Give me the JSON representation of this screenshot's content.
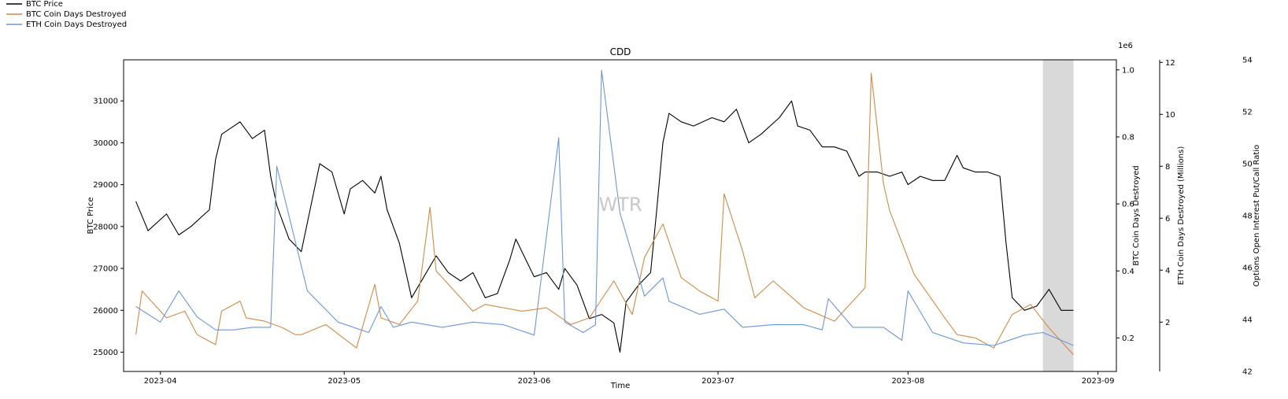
{
  "legend": {
    "items": [
      {
        "label": "BTC Price",
        "color": "#000000"
      },
      {
        "label": "BTC Coin Days Destroyed",
        "color": "#d08a47"
      },
      {
        "label": "ETH Coin Days Destroyed",
        "color": "#6b96d8"
      }
    ]
  },
  "watermark": "WTR",
  "chart_data": {
    "type": "line",
    "title": "CDD",
    "xlabel": "Time",
    "x_ticks": [
      "2023-04",
      "2023-05",
      "2023-06",
      "2023-07",
      "2023-08",
      "2023-09"
    ],
    "x_range": [
      "2023-03-26",
      "2023-09-04"
    ],
    "axes": {
      "btc_price": {
        "label": "BTC Price",
        "ylim": [
          24540,
          31980
        ],
        "ticks": [
          25000,
          26000,
          27000,
          28000,
          29000,
          30000,
          31000
        ]
      },
      "btc_cdd": {
        "label": "BTC Coin Days Destroyed",
        "scale_label": "1e6",
        "ylim": [
          0.1,
          1.03
        ],
        "ticks": [
          "0.2",
          "0.4",
          "0.6",
          "0.8",
          "1.0"
        ]
      },
      "eth_cdd": {
        "label": "ETH Coin Days Destroyed (Millions)",
        "ylim": [
          0.1,
          12.1
        ],
        "ticks": [
          "2",
          "4",
          "6",
          "8",
          "10",
          "12"
        ]
      },
      "put_call": {
        "label": "Options Open Interest Put/Call Ratio",
        "ylim": [
          42,
          54
        ],
        "ticks": [
          "42",
          "44",
          "46",
          "48",
          "50",
          "52",
          "54"
        ]
      }
    },
    "shaded_region": [
      "2023-08-23",
      "2023-08-28"
    ],
    "series": [
      {
        "name": "BTC Price",
        "color": "#000000",
        "axis": "btc_price",
        "x": [
          "2023-03-28",
          "2023-03-30",
          "2023-04-02",
          "2023-04-04",
          "2023-04-06",
          "2023-04-09",
          "2023-04-10",
          "2023-04-11",
          "2023-04-14",
          "2023-04-16",
          "2023-04-18",
          "2023-04-19",
          "2023-04-20",
          "2023-04-22",
          "2023-04-24",
          "2023-04-26",
          "2023-04-27",
          "2023-04-29",
          "2023-05-01",
          "2023-05-02",
          "2023-05-04",
          "2023-05-06",
          "2023-05-07",
          "2023-05-08",
          "2023-05-10",
          "2023-05-12",
          "2023-05-14",
          "2023-05-16",
          "2023-05-18",
          "2023-05-20",
          "2023-05-22",
          "2023-05-24",
          "2023-05-26",
          "2023-05-28",
          "2023-05-29",
          "2023-05-31",
          "2023-06-01",
          "2023-06-03",
          "2023-06-05",
          "2023-06-06",
          "2023-06-08",
          "2023-06-10",
          "2023-06-12",
          "2023-06-14",
          "2023-06-15",
          "2023-06-16",
          "2023-06-18",
          "2023-06-20",
          "2023-06-21",
          "2023-06-22",
          "2023-06-23",
          "2023-06-25",
          "2023-06-27",
          "2023-06-30",
          "2023-07-02",
          "2023-07-04",
          "2023-07-06",
          "2023-07-08",
          "2023-07-11",
          "2023-07-13",
          "2023-07-14",
          "2023-07-16",
          "2023-07-18",
          "2023-07-20",
          "2023-07-22",
          "2023-07-24",
          "2023-07-25",
          "2023-07-27",
          "2023-07-29",
          "2023-07-31",
          "2023-08-01",
          "2023-08-03",
          "2023-08-05",
          "2023-08-07",
          "2023-08-09",
          "2023-08-10",
          "2023-08-12",
          "2023-08-14",
          "2023-08-16",
          "2023-08-17",
          "2023-08-18",
          "2023-08-20",
          "2023-08-22",
          "2023-08-24",
          "2023-08-26",
          "2023-08-28"
        ],
        "values": [
          28600,
          27900,
          28300,
          27800,
          28000,
          28400,
          29600,
          30200,
          30500,
          30100,
          30300,
          29200,
          28500,
          27700,
          27400,
          28800,
          29500,
          29300,
          28300,
          28900,
          29100,
          28800,
          29200,
          28400,
          27600,
          26300,
          26800,
          27300,
          26900,
          26700,
          26900,
          26300,
          26400,
          27200,
          27700,
          27100,
          26800,
          26900,
          26500,
          27000,
          26600,
          25800,
          25900,
          25700,
          25000,
          26200,
          26600,
          26900,
          28400,
          30000,
          30700,
          30500,
          30400,
          30600,
          30500,
          30800,
          30000,
          30200,
          30600,
          31000,
          30400,
          30300,
          29900,
          29900,
          29800,
          29200,
          29300,
          29300,
          29200,
          29300,
          29000,
          29200,
          29100,
          29100,
          29700,
          29400,
          29300,
          29300,
          29200,
          27600,
          26300,
          26000,
          26100,
          26500,
          26000,
          26000
        ]
      },
      {
        "name": "BTC Coin Days Destroyed",
        "color": "#d08a47",
        "axis": "btc_cdd",
        "x": [
          "2023-03-28",
          "2023-03-29",
          "2023-04-02",
          "2023-04-05",
          "2023-04-07",
          "2023-04-10",
          "2023-04-11",
          "2023-04-14",
          "2023-04-15",
          "2023-04-18",
          "2023-04-21",
          "2023-04-23",
          "2023-04-24",
          "2023-04-28",
          "2023-05-03",
          "2023-05-06",
          "2023-05-07",
          "2023-05-10",
          "2023-05-13",
          "2023-05-15",
          "2023-05-16",
          "2023-05-19",
          "2023-05-22",
          "2023-05-24",
          "2023-05-30",
          "2023-06-03",
          "2023-06-07",
          "2023-06-10",
          "2023-06-14",
          "2023-06-17",
          "2023-06-19",
          "2023-06-22",
          "2023-06-25",
          "2023-06-28",
          "2023-07-01",
          "2023-07-02",
          "2023-07-05",
          "2023-07-07",
          "2023-07-10",
          "2023-07-15",
          "2023-07-20",
          "2023-07-25",
          "2023-07-26",
          "2023-07-28",
          "2023-07-29",
          "2023-08-02",
          "2023-08-07",
          "2023-08-09",
          "2023-08-12",
          "2023-08-15",
          "2023-08-18",
          "2023-08-21",
          "2023-08-24",
          "2023-08-27",
          "2023-08-28"
        ],
        "values": [
          0.21,
          0.34,
          0.26,
          0.28,
          0.21,
          0.18,
          0.28,
          0.31,
          0.26,
          0.25,
          0.23,
          0.21,
          0.21,
          0.24,
          0.17,
          0.36,
          0.26,
          0.24,
          0.31,
          0.59,
          0.4,
          0.34,
          0.28,
          0.3,
          0.28,
          0.29,
          0.24,
          0.26,
          0.37,
          0.27,
          0.44,
          0.54,
          0.38,
          0.34,
          0.31,
          0.63,
          0.46,
          0.32,
          0.37,
          0.29,
          0.25,
          0.35,
          0.99,
          0.66,
          0.58,
          0.39,
          0.26,
          0.21,
          0.2,
          0.17,
          0.27,
          0.3,
          0.23,
          0.17,
          0.15
        ]
      },
      {
        "name": "ETH Coin Days Destroyed",
        "color": "#6b96d8",
        "axis": "eth_cdd",
        "x": [
          "2023-03-28",
          "2023-04-01",
          "2023-04-04",
          "2023-04-07",
          "2023-04-10",
          "2023-04-13",
          "2023-04-16",
          "2023-04-19",
          "2023-04-20",
          "2023-04-25",
          "2023-04-30",
          "2023-05-05",
          "2023-05-07",
          "2023-05-09",
          "2023-05-12",
          "2023-05-17",
          "2023-05-22",
          "2023-05-27",
          "2023-06-01",
          "2023-06-05",
          "2023-06-06",
          "2023-06-09",
          "2023-06-11",
          "2023-06-12",
          "2023-06-15",
          "2023-06-19",
          "2023-06-22",
          "2023-06-23",
          "2023-06-28",
          "2023-07-02",
          "2023-07-05",
          "2023-07-10",
          "2023-07-15",
          "2023-07-18",
          "2023-07-19",
          "2023-07-23",
          "2023-07-28",
          "2023-07-31",
          "2023-08-01",
          "2023-08-05",
          "2023-08-10",
          "2023-08-15",
          "2023-08-20",
          "2023-08-23",
          "2023-08-28"
        ],
        "values": [
          2.6,
          2.0,
          3.2,
          2.2,
          1.7,
          1.7,
          1.8,
          1.8,
          8.0,
          3.2,
          2.0,
          1.6,
          2.6,
          1.8,
          2.0,
          1.8,
          2.0,
          1.9,
          1.5,
          9.1,
          2.0,
          1.6,
          1.9,
          11.7,
          6.2,
          3.0,
          3.7,
          2.8,
          2.3,
          2.5,
          1.8,
          1.9,
          1.9,
          1.7,
          2.9,
          1.8,
          1.8,
          1.3,
          3.2,
          1.6,
          1.2,
          1.1,
          1.5,
          1.6,
          1.1
        ]
      }
    ]
  }
}
